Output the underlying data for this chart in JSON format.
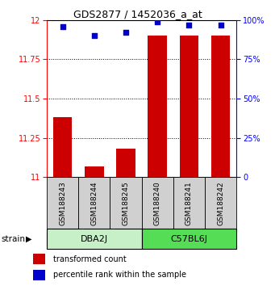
{
  "title": "GDS2877 / 1452036_a_at",
  "samples": [
    "GSM188243",
    "GSM188244",
    "GSM188245",
    "GSM188240",
    "GSM188241",
    "GSM188242"
  ],
  "groups": [
    {
      "name": "DBA2J",
      "indices": [
        0,
        1,
        2
      ],
      "color": "#c8f0c8"
    },
    {
      "name": "C57BL6J",
      "indices": [
        3,
        4,
        5
      ],
      "color": "#55dd55"
    }
  ],
  "bar_values": [
    11.38,
    11.07,
    11.18,
    11.9,
    11.9,
    11.9
  ],
  "percentile_values": [
    96,
    90,
    92,
    99,
    97,
    97
  ],
  "bar_color": "#cc0000",
  "dot_color": "#0000cc",
  "ylim_left": [
    11.0,
    12.0
  ],
  "ylim_right": [
    0,
    100
  ],
  "yticks_left": [
    11.0,
    11.25,
    11.5,
    11.75,
    12.0
  ],
  "yticks_right": [
    0,
    25,
    50,
    75,
    100
  ],
  "legend_bar_label": "transformed count",
  "legend_dot_label": "percentile rank within the sample",
  "strain_label": "strain",
  "group_label_fontsize": 8,
  "sample_label_fontsize": 6.5,
  "title_fontsize": 9,
  "bar_width": 0.6,
  "bg_color": "#ffffff",
  "sample_box_color": "#d0d0d0",
  "grid_color": "#555555",
  "tick_label_fontsize": 7
}
